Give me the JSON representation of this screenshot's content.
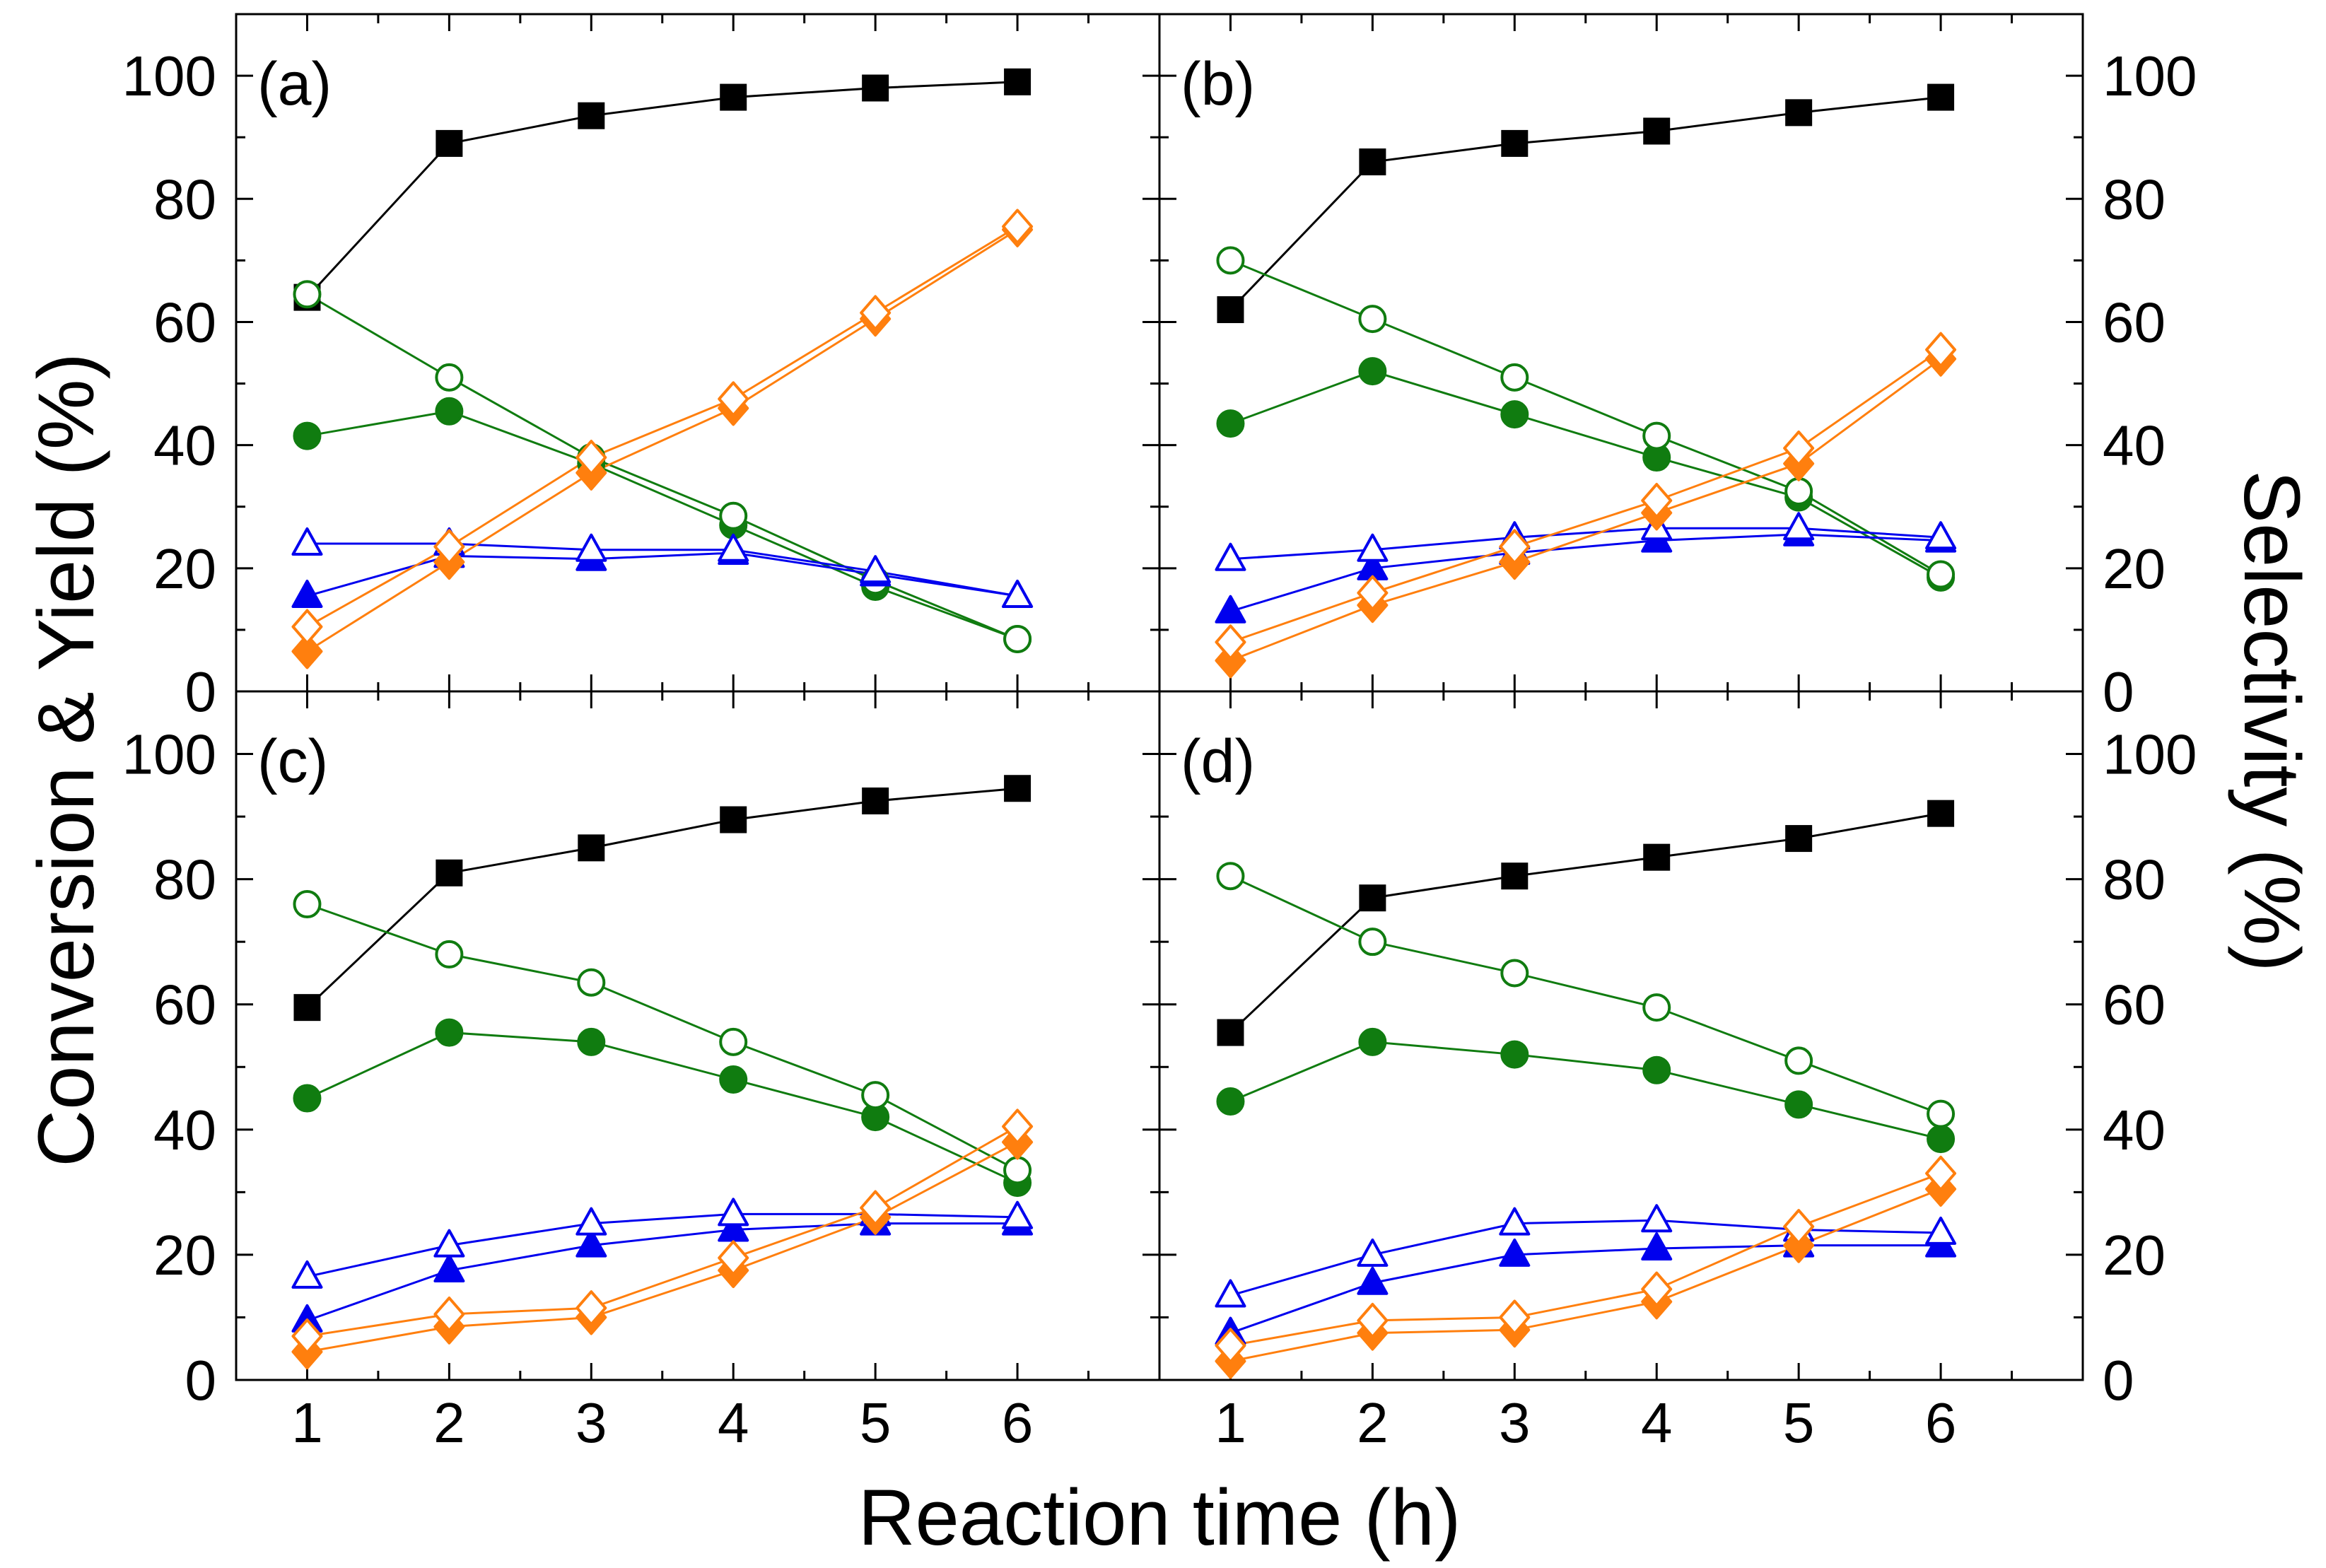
{
  "chart_data": {
    "type": "line",
    "xlabel": "Reaction time (h)",
    "ylabel_left": "Conversion & Yield (%)",
    "ylabel_right": "Selectivity (%)",
    "xlim": [
      0.5,
      7
    ],
    "ylim": [
      0,
      110
    ],
    "xticks": [
      1,
      2,
      3,
      4,
      5,
      6
    ],
    "yticks": [
      0,
      20,
      40,
      60,
      80,
      100
    ],
    "grid": false,
    "legend": "none",
    "x": [
      1,
      2,
      3,
      4,
      5,
      6
    ],
    "panels": [
      {
        "label": "(a)",
        "series": [
          {
            "marker": "filled-square",
            "color": "#000000",
            "values": [
              64,
              89,
              93.5,
              96.5,
              98,
              99
            ]
          },
          {
            "marker": "filled-circle",
            "color": "#107c10",
            "values": [
              41.5,
              45.5,
              37,
              27,
              17,
              8.5
            ]
          },
          {
            "marker": "open-circle",
            "color": "#107c10",
            "values": [
              64.5,
              51,
              38,
              28.5,
              18,
              8.5
            ]
          },
          {
            "marker": "filled-triangle",
            "color": "#0000ee",
            "values": [
              15.5,
              22,
              21.5,
              22.5,
              19,
              15.5
            ]
          },
          {
            "marker": "open-triangle",
            "color": "#0000ee",
            "values": [
              24,
              24,
              23,
              23,
              19.5,
              15.5
            ]
          },
          {
            "marker": "filled-diamond",
            "color": "#ff7f0e",
            "values": [
              6.5,
              21,
              35.5,
              46,
              60.5,
              75
            ]
          },
          {
            "marker": "open-diamond",
            "color": "#ff7f0e",
            "values": [
              10.5,
              23.5,
              38,
              47.5,
              61.5,
              75.5
            ]
          }
        ]
      },
      {
        "label": "(b)",
        "series": [
          {
            "marker": "filled-square",
            "color": "#000000",
            "values": [
              62,
              86,
              89,
              91,
              94,
              96.5
            ]
          },
          {
            "marker": "filled-circle",
            "color": "#107c10",
            "values": [
              43.5,
              52,
              45,
              38,
              31.5,
              18.5
            ]
          },
          {
            "marker": "open-circle",
            "color": "#107c10",
            "values": [
              70,
              60.5,
              51,
              41.5,
              32.5,
              19
            ]
          },
          {
            "marker": "filled-triangle",
            "color": "#0000ee",
            "values": [
              13,
              20,
              22.5,
              24.5,
              25.5,
              24.5
            ]
          },
          {
            "marker": "open-triangle",
            "color": "#0000ee",
            "values": [
              21.5,
              23,
              25,
              26.5,
              26.5,
              25
            ]
          },
          {
            "marker": "filled-diamond",
            "color": "#ff7f0e",
            "values": [
              5,
              14,
              21,
              29,
              37,
              54
            ]
          },
          {
            "marker": "open-diamond",
            "color": "#ff7f0e",
            "values": [
              8,
              16,
              23.5,
              31,
              39.5,
              55.5
            ]
          }
        ]
      },
      {
        "label": "(c)",
        "series": [
          {
            "marker": "filled-square",
            "color": "#000000",
            "values": [
              59.5,
              81,
              85,
              89.5,
              92.5,
              94.5
            ]
          },
          {
            "marker": "filled-circle",
            "color": "#107c10",
            "values": [
              45,
              55.5,
              54,
              48,
              42,
              31.5
            ]
          },
          {
            "marker": "open-circle",
            "color": "#107c10",
            "values": [
              76,
              68,
              63.5,
              54,
              45.5,
              33.5
            ]
          },
          {
            "marker": "filled-triangle",
            "color": "#0000ee",
            "values": [
              9.5,
              17.5,
              21.5,
              24,
              25,
              25
            ]
          },
          {
            "marker": "open-triangle",
            "color": "#0000ee",
            "values": [
              16.5,
              21.5,
              25,
              26.5,
              26.5,
              26
            ]
          },
          {
            "marker": "filled-diamond",
            "color": "#ff7f0e",
            "values": [
              4.5,
              8.5,
              10,
              17.5,
              26,
              38
            ]
          },
          {
            "marker": "open-diamond",
            "color": "#ff7f0e",
            "values": [
              7,
              10.5,
              11.5,
              19.5,
              27.5,
              40.5
            ]
          }
        ]
      },
      {
        "label": "(d)",
        "series": [
          {
            "marker": "filled-square",
            "color": "#000000",
            "values": [
              55.5,
              77,
              80.5,
              83.5,
              86.5,
              90.5
            ]
          },
          {
            "marker": "filled-circle",
            "color": "#107c10",
            "values": [
              44.5,
              54,
              52,
              49.5,
              44,
              38.5
            ]
          },
          {
            "marker": "open-circle",
            "color": "#107c10",
            "values": [
              80.5,
              70,
              65,
              59.5,
              51,
              42.5
            ]
          },
          {
            "marker": "filled-triangle",
            "color": "#0000ee",
            "values": [
              7.5,
              15.5,
              20,
              21,
              21.5,
              21.5
            ]
          },
          {
            "marker": "open-triangle",
            "color": "#0000ee",
            "values": [
              13.5,
              20,
              25,
              25.5,
              24,
              23.5
            ]
          },
          {
            "marker": "filled-diamond",
            "color": "#ff7f0e",
            "values": [
              3,
              7.5,
              8,
              12.5,
              21.5,
              30.5
            ]
          },
          {
            "marker": "open-diamond",
            "color": "#ff7f0e",
            "values": [
              5.5,
              9.5,
              10,
              14.5,
              24.5,
              33
            ]
          }
        ]
      }
    ]
  }
}
